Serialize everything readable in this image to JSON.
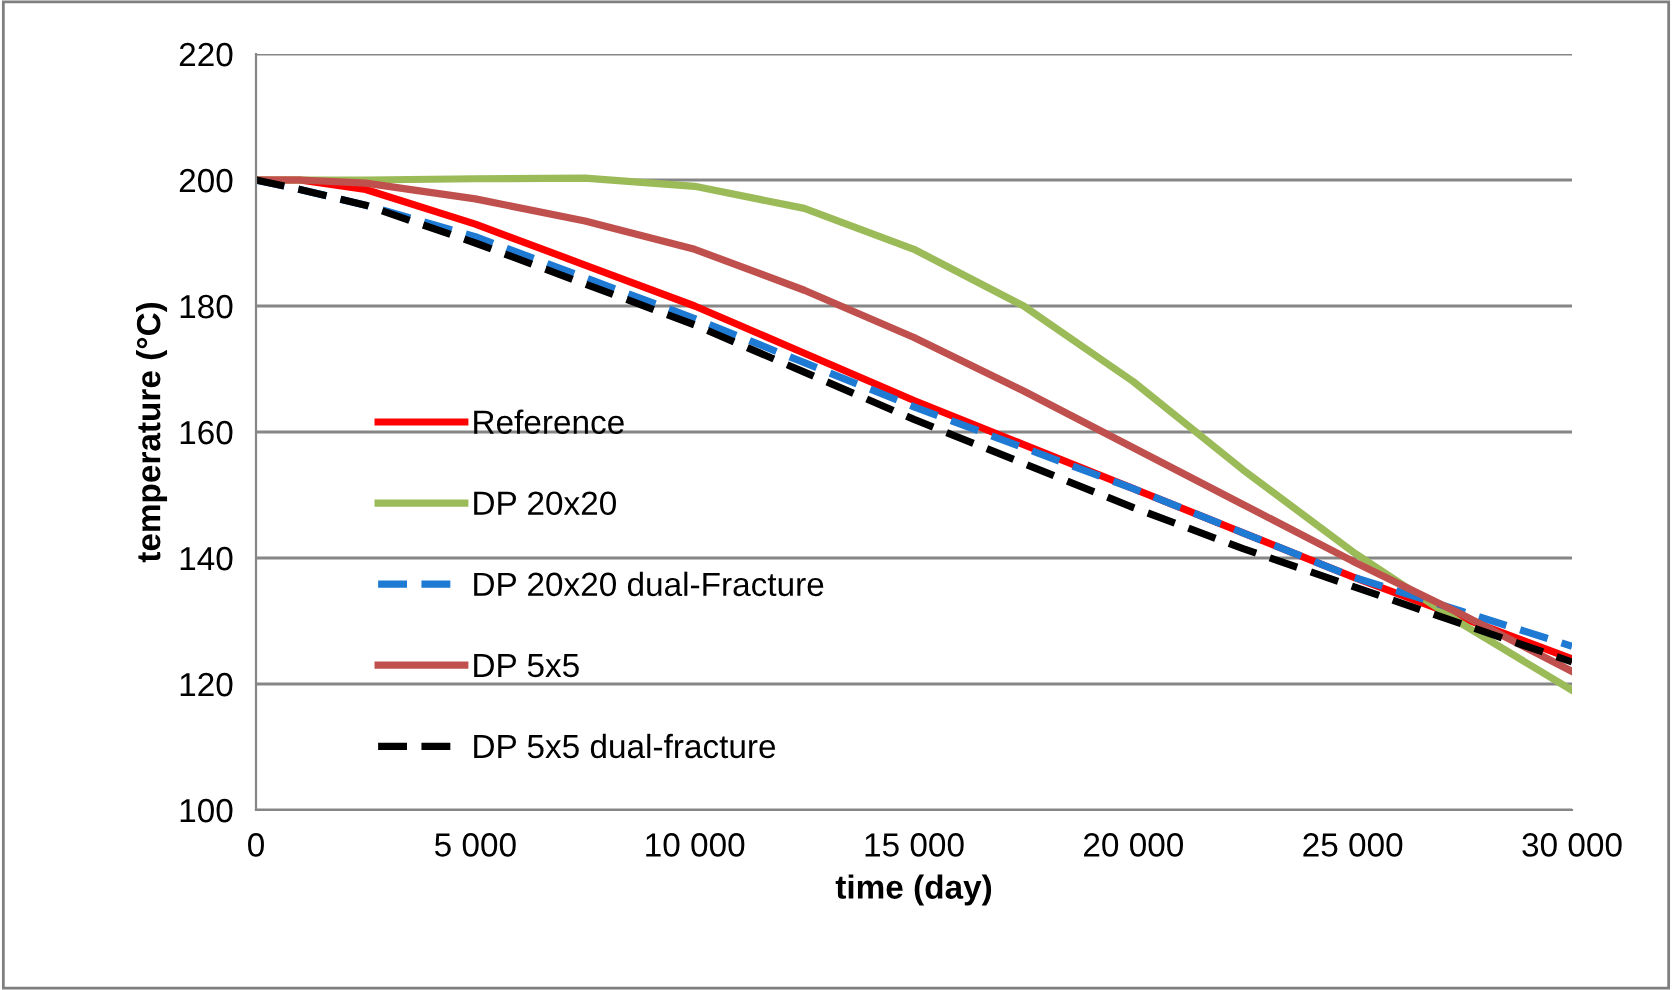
{
  "chart_data": {
    "type": "line",
    "xlabel": "time (day)",
    "ylabel": "temperature (°C)",
    "xlim": [
      0,
      30000
    ],
    "ylim": [
      100,
      220
    ],
    "xticks": [
      0,
      {
        "value": 5000,
        "label": "5 000"
      },
      {
        "value": 10000,
        "label": "10 000"
      },
      {
        "value": 15000,
        "label": "15 000"
      },
      {
        "value": 20000,
        "label": "20 000"
      },
      {
        "value": 25000,
        "label": "25 000"
      },
      {
        "value": 30000,
        "label": "30 000"
      }
    ],
    "yticks": [
      100,
      120,
      140,
      160,
      180,
      200,
      220
    ],
    "grid": "y",
    "legend": "left",
    "x": [
      0,
      1000,
      2500,
      5000,
      7500,
      10000,
      12500,
      15000,
      17500,
      20000,
      22500,
      25000,
      27500,
      30000
    ],
    "series": [
      {
        "name": "Reference",
        "color": "#ff0000",
        "line_style": "solid",
        "values": [
          200,
          200,
          198.5,
          193,
          186.5,
          180,
          172.5,
          165,
          158,
          151,
          144,
          137,
          130.5,
          124
        ]
      },
      {
        "name": "DP 20x20",
        "color": "#9bbb59",
        "line_style": "solid",
        "values": [
          200,
          200,
          200,
          200.2,
          200.3,
          199,
          195.5,
          189,
          180,
          168,
          154,
          141,
          129.5,
          119
        ]
      },
      {
        "name": "DP 20x20 dual-Fracture",
        "color": "#1f7ad4",
        "line_style": "dashed",
        "values": [
          200,
          198.5,
          196,
          191,
          184.5,
          178,
          171,
          164,
          157.5,
          151,
          144,
          137,
          131.5,
          126
        ]
      },
      {
        "name": "DP 5x5",
        "color": "#c0504d",
        "line_style": "solid",
        "values": [
          200,
          200,
          199.5,
          197,
          193.5,
          189,
          182.5,
          175,
          166.5,
          157.5,
          148.5,
          139.5,
          131,
          122
        ]
      },
      {
        "name": "DP 5x5 dual-fracture",
        "color": "#000000",
        "line_style": "dashed",
        "values": [
          200,
          198.5,
          196,
          190,
          183.5,
          177,
          169.5,
          162,
          155,
          148,
          141.5,
          135.5,
          129.5,
          123.5
        ]
      }
    ]
  }
}
